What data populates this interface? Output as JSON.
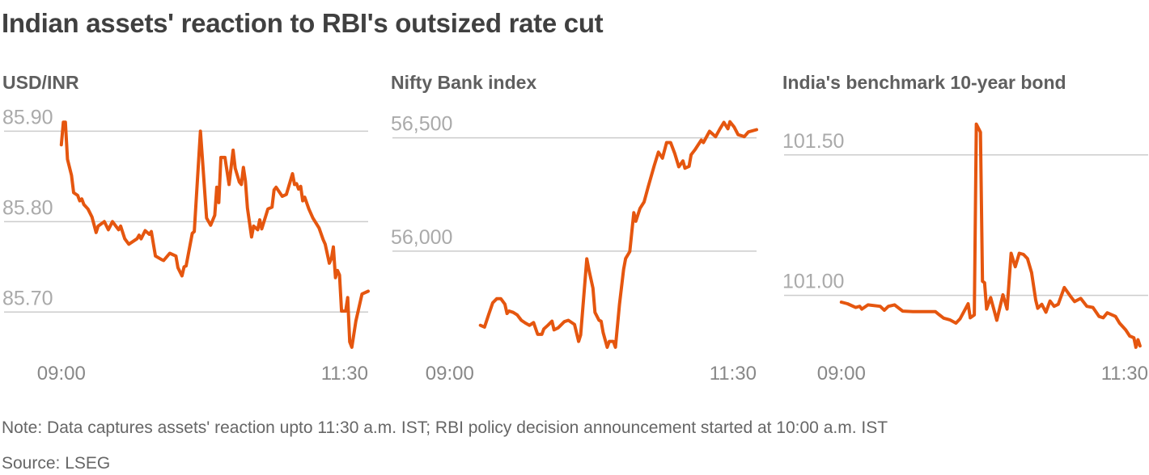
{
  "title": "Indian assets' reaction to RBI's outsized rate cut",
  "note": "Note: Data captures assets' reaction upto 11:30 a.m. IST; RBI policy decision announcement started at 10:00 a.m. IST",
  "source": "Source: LSEG",
  "colors": {
    "line": "#e5560f",
    "grid": "#cccccc",
    "ytick": "#aaaaaa",
    "xtick": "#888888",
    "panel_title": "#5f5f5f"
  },
  "chart_data": [
    {
      "type": "line",
      "title": "USD/INR",
      "xlim": [
        "08:32",
        "11:30"
      ],
      "ylim": [
        85.652,
        85.92
      ],
      "grid": true,
      "yticks": {
        "values": [
          85.9,
          85.8,
          85.7
        ],
        "labels": [
          "85.90",
          "85.80",
          "85.70"
        ]
      },
      "xticks": {
        "values": [
          "09:00",
          "11:30"
        ],
        "labels": [
          "09:00",
          "11:30"
        ]
      },
      "x": [
        "09:00",
        "09:01",
        "09:02",
        "09:03",
        "09:05",
        "09:06",
        "09:08",
        "09:09",
        "09:10",
        "09:11",
        "09:13",
        "09:15",
        "09:17",
        "09:18",
        "09:21",
        "09:23",
        "09:25",
        "09:28",
        "09:29",
        "09:31",
        "09:33",
        "09:37",
        "09:38",
        "09:39",
        "09:41",
        "09:43",
        "09:44",
        "09:46",
        "09:49",
        "09:50",
        "09:53",
        "09:56",
        "09:57",
        "09:59",
        "10:00",
        "10:01",
        "10:04",
        "10:05",
        "10:08",
        "10:09",
        "10:11",
        "10:13",
        "10:15",
        "10:16",
        "10:17",
        "10:18",
        "10:20",
        "10:22",
        "10:24",
        "10:25",
        "10:27",
        "10:28",
        "10:29",
        "10:30",
        "10:31",
        "10:33",
        "10:34",
        "10:36",
        "10:37",
        "10:38",
        "10:41",
        "10:43",
        "10:44",
        "10:45",
        "10:48",
        "10:50",
        "10:53",
        "10:54",
        "10:55",
        "10:56",
        "10:57",
        "10:58",
        "10:59",
        "11:01",
        "11:03",
        "11:06",
        "11:08",
        "11:09",
        "11:11",
        "11:12",
        "11:13",
        "11:14",
        "11:15",
        "11:16",
        "11:17",
        "11:19",
        "11:20",
        "11:21",
        "11:22",
        "11:24",
        "11:27",
        "11:30"
      ],
      "y": [
        85.885,
        85.91,
        85.91,
        85.869,
        85.851,
        85.832,
        85.829,
        85.823,
        85.825,
        85.819,
        85.814,
        85.805,
        85.788,
        85.795,
        85.8,
        85.791,
        85.8,
        85.791,
        85.795,
        85.781,
        85.775,
        85.781,
        85.785,
        85.781,
        85.79,
        85.786,
        85.789,
        85.762,
        85.758,
        85.757,
        85.765,
        85.762,
        85.749,
        85.74,
        85.75,
        85.751,
        85.787,
        85.789,
        85.9,
        85.869,
        85.804,
        85.796,
        85.807,
        85.838,
        85.821,
        85.871,
        85.871,
        85.841,
        85.879,
        85.859,
        85.844,
        85.841,
        85.86,
        85.845,
        85.815,
        85.783,
        85.795,
        85.791,
        85.802,
        85.792,
        85.814,
        85.816,
        85.835,
        85.838,
        85.828,
        85.83,
        85.853,
        85.841,
        85.842,
        85.836,
        85.839,
        85.823,
        85.827,
        85.814,
        85.804,
        85.793,
        85.78,
        85.775,
        85.754,
        85.759,
        85.772,
        85.738,
        85.746,
        85.741,
        85.701,
        85.701,
        85.716,
        85.667,
        85.661,
        85.69,
        85.72,
        85.723
      ]
    },
    {
      "type": "line",
      "title": "Nifty Bank index",
      "xlim": [
        "08:32",
        "11:30"
      ],
      "ylim": [
        55540,
        56609
      ],
      "grid": true,
      "yticks": {
        "values": [
          56500,
          56000
        ],
        "labels": [
          "56,500",
          "56,000"
        ]
      },
      "xticks": {
        "values": [
          "09:00",
          "11:30"
        ],
        "labels": [
          "09:00",
          "11:30"
        ]
      },
      "x": [
        "09:15",
        "09:17",
        "09:19",
        "09:21",
        "09:23",
        "09:25",
        "09:27",
        "09:28",
        "09:29",
        "09:31",
        "09:33",
        "09:35",
        "09:37",
        "09:39",
        "09:41",
        "09:43",
        "09:45",
        "09:46",
        "09:48",
        "09:50",
        "09:51",
        "09:53",
        "09:56",
        "09:58",
        "10:01",
        "10:03",
        "10:04",
        "10:07",
        "10:08",
        "10:10",
        "10:11",
        "10:13",
        "10:14",
        "10:15",
        "10:17",
        "10:18",
        "10:20",
        "10:21",
        "10:23",
        "10:25",
        "10:26",
        "10:28",
        "10:30",
        "10:31",
        "10:33",
        "10:35",
        "10:37",
        "10:40",
        "10:42",
        "10:44",
        "10:46",
        "10:48",
        "10:50",
        "10:52",
        "10:54",
        "10:55",
        "10:57",
        "10:58",
        "11:00",
        "11:03",
        "11:04",
        "11:07",
        "11:10",
        "11:12",
        "11:14",
        "11:16",
        "11:17",
        "11:19",
        "11:21",
        "11:23",
        "11:24",
        "11:26",
        "11:30"
      ],
      "y": [
        55673,
        55665,
        55719,
        55772,
        55790,
        55790,
        55766,
        55725,
        55736,
        55730,
        55719,
        55695,
        55683,
        55673,
        55685,
        55633,
        55633,
        55657,
        55673,
        55691,
        55653,
        55662,
        55689,
        55695,
        55677,
        55602,
        55630,
        55966,
        55920,
        55837,
        55730,
        55695,
        55691,
        55641,
        55576,
        55602,
        55602,
        55576,
        55766,
        55920,
        55968,
        55998,
        56170,
        56132,
        56188,
        56217,
        56283,
        56378,
        56437,
        56410,
        56479,
        56479,
        56431,
        56372,
        56398,
        56366,
        56374,
        56425,
        56449,
        56490,
        56479,
        56529,
        56505,
        56538,
        56568,
        56540,
        56571,
        56548,
        56514,
        56508,
        56505,
        56526,
        56536
      ]
    },
    {
      "type": "line",
      "title": "India's benchmark 10-year bond",
      "xlim": [
        "08:32",
        "11:30"
      ],
      "ylim": [
        100.786,
        101.649
      ],
      "grid": true,
      "yticks": {
        "values": [
          101.5,
          101.0
        ],
        "labels": [
          "101.50",
          "101.00"
        ]
      },
      "xticks": {
        "values": [
          "09:00",
          "11:30"
        ],
        "labels": [
          "09:00",
          "11:30"
        ]
      },
      "x": [
        "09:00",
        "09:03",
        "09:07",
        "09:09",
        "09:10",
        "09:13",
        "09:19",
        "09:21",
        "09:23",
        "09:26",
        "09:30",
        "09:35",
        "09:46",
        "09:48",
        "09:50",
        "09:53",
        "09:56",
        "09:58",
        "10:02",
        "10:03",
        "10:05",
        "10:06",
        "10:08",
        "10:09",
        "10:10",
        "10:11",
        "10:13",
        "10:16",
        "10:19",
        "10:21",
        "10:23",
        "10:25",
        "10:27",
        "10:29",
        "10:31",
        "10:33",
        "10:35",
        "10:36",
        "10:38",
        "10:40",
        "10:42",
        "10:44",
        "10:46",
        "10:49",
        "10:52",
        "10:54",
        "10:57",
        "11:00",
        "11:03",
        "11:06",
        "11:08",
        "11:10",
        "11:14",
        "11:16",
        "11:19",
        "11:21",
        "11:23",
        "11:24",
        "11:25",
        "11:26"
      ],
      "y": [
        100.976,
        100.97,
        100.957,
        100.961,
        100.951,
        100.966,
        100.961,
        100.947,
        100.961,
        100.966,
        100.944,
        100.942,
        100.942,
        100.93,
        100.919,
        100.913,
        100.901,
        100.916,
        100.97,
        100.92,
        100.93,
        101.61,
        101.581,
        101.05,
        101.045,
        100.951,
        100.992,
        100.911,
        101.002,
        100.951,
        101.15,
        101.102,
        101.15,
        101.146,
        101.131,
        101.081,
        100.983,
        100.954,
        100.968,
        100.94,
        100.98,
        100.961,
        100.968,
        101.028,
        100.997,
        100.978,
        100.989,
        100.961,
        100.957,
        100.925,
        100.92,
        100.938,
        100.925,
        100.901,
        100.877,
        100.855,
        100.849,
        100.815,
        100.842,
        100.82
      ]
    }
  ]
}
